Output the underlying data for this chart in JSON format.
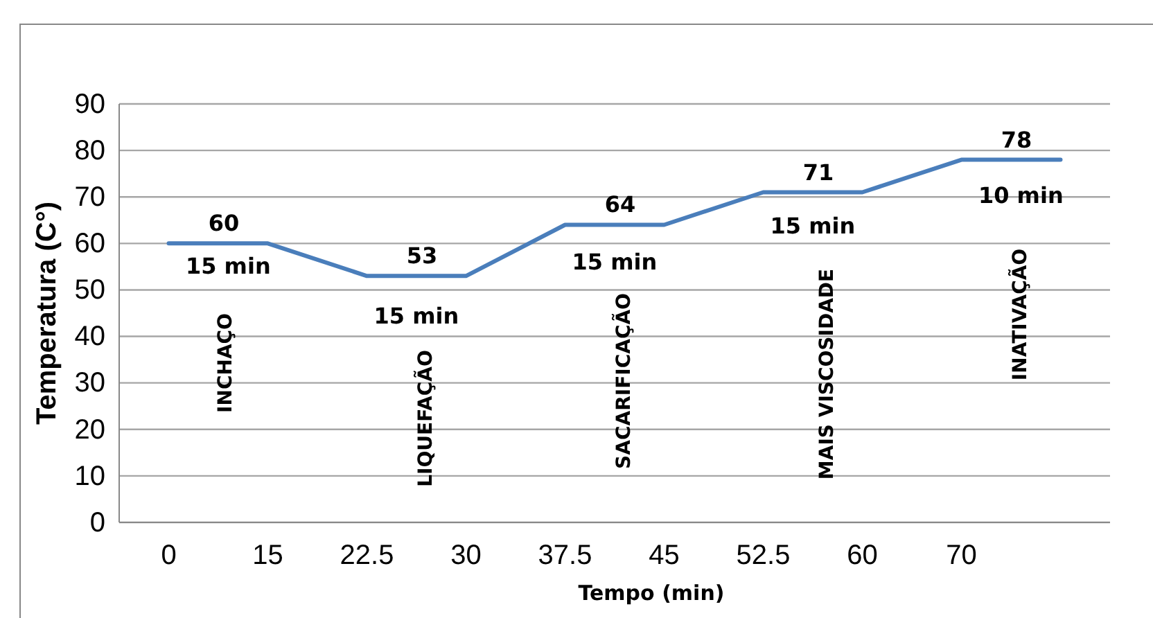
{
  "chart_data": {
    "type": "line",
    "xlabel": "Tempo (min)",
    "ylabel": "Temperatura (C°)",
    "categories": [
      "0",
      "15",
      "22.5",
      "30",
      "37.5",
      "45",
      "52.5",
      "60",
      "70",
      null
    ],
    "series": [
      {
        "color": "#4a7ebb",
        "values": [
          60,
          60,
          53,
          53,
          64,
          64,
          71,
          71,
          78,
          78
        ],
        "value_labels": [
          "60",
          null,
          "53",
          null,
          "64",
          null,
          "71",
          null,
          "78",
          null
        ]
      }
    ],
    "ylim": [
      0,
      90
    ],
    "yticks": [
      0,
      10,
      20,
      30,
      40,
      50,
      60,
      70,
      80,
      90
    ],
    "grid": "y",
    "marker": "none",
    "line_style": "solid",
    "annotations": [
      "15 min",
      "15 min",
      "15 min",
      "15 min",
      "10 min",
      "INCHAÇO",
      "LIQUEFAÇÃO",
      "SACARIFICAÇÃO",
      "MAIS VISCOSIDADE",
      "INATIVAÇÃO"
    ]
  }
}
